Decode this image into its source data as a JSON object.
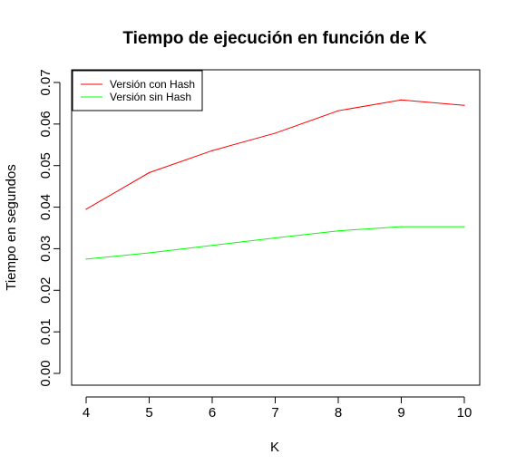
{
  "chart_data": {
    "type": "line",
    "title": "Tiempo de ejecución en función de K",
    "xlabel": "K",
    "ylabel": "Tiempo en segundos",
    "x": [
      4,
      5,
      6,
      7,
      8,
      9,
      10
    ],
    "xlim": [
      4,
      10
    ],
    "ylim": [
      0,
      0.07
    ],
    "xticks": [
      "4",
      "5",
      "6",
      "7",
      "8",
      "9",
      "10"
    ],
    "yticks": [
      "0.00",
      "0.01",
      "0.02",
      "0.03",
      "0.04",
      "0.05",
      "0.06",
      "0.07"
    ],
    "grid": false,
    "legend_position": "top-left",
    "series": [
      {
        "name": "Versión con Hash",
        "color": "#ff0000",
        "values": [
          0.0395,
          0.0483,
          0.0536,
          0.0578,
          0.0632,
          0.0658,
          0.0645
        ]
      },
      {
        "name": "Versión sin Hash",
        "color": "#00ff00",
        "values": [
          0.0275,
          0.029,
          0.0308,
          0.0326,
          0.0343,
          0.0353,
          0.0353
        ]
      }
    ]
  }
}
